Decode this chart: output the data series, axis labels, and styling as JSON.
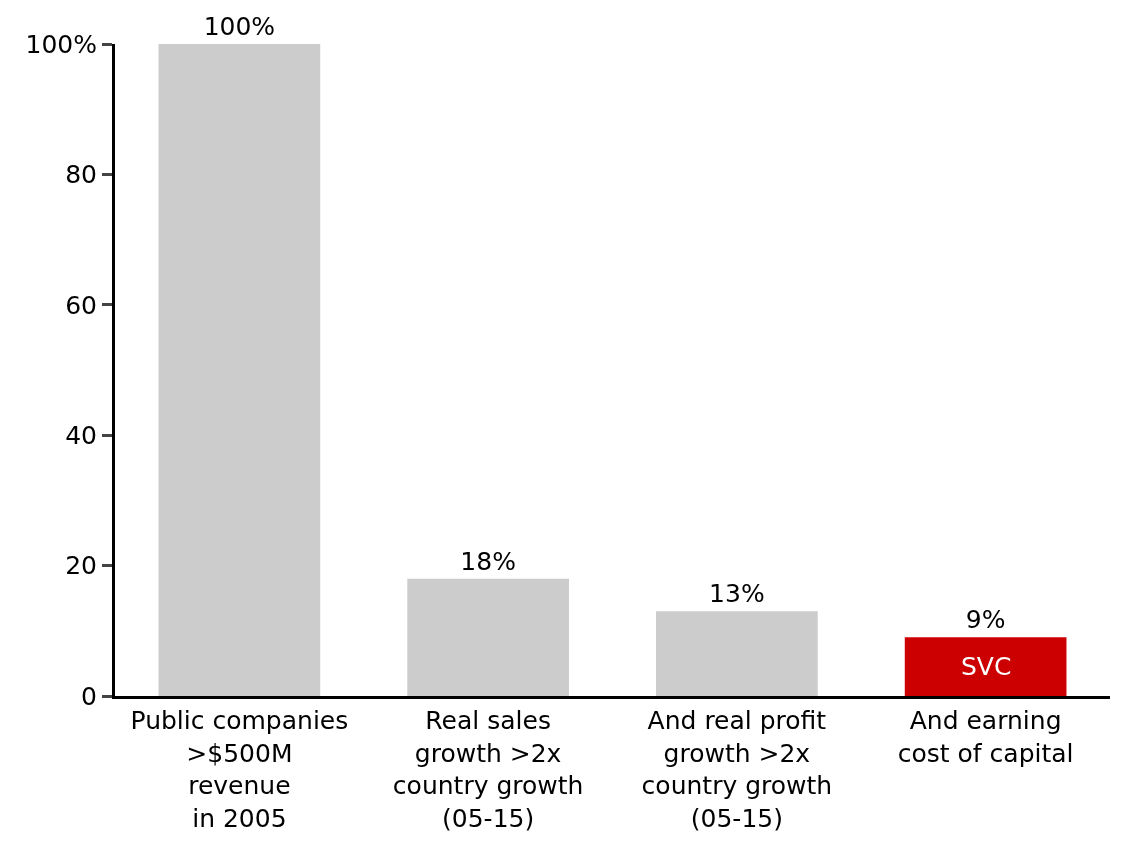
{
  "chart_data": {
    "type": "bar",
    "categories": [
      "Public companies\n>$500M\nrevenue\nin 2005",
      "Real sales\ngrowth >2x\ncountry growth\n(05-15)",
      "And real profit\ngrowth >2x\ncountry growth\n(05-15)",
      "And earning\ncost of capital"
    ],
    "values": [
      100,
      18,
      13,
      9
    ],
    "colors": [
      "#cccccc",
      "#cccccc",
      "#cccccc",
      "#cc0000"
    ],
    "value_labels": [
      "100%",
      "18%",
      "13%",
      "9%"
    ],
    "ylim": [
      0,
      100
    ],
    "yticks": [
      0,
      20,
      40,
      60,
      80,
      {
        "value": 100,
        "label": "100%"
      }
    ],
    "grid": false,
    "annotations": [
      "SVC"
    ]
  }
}
